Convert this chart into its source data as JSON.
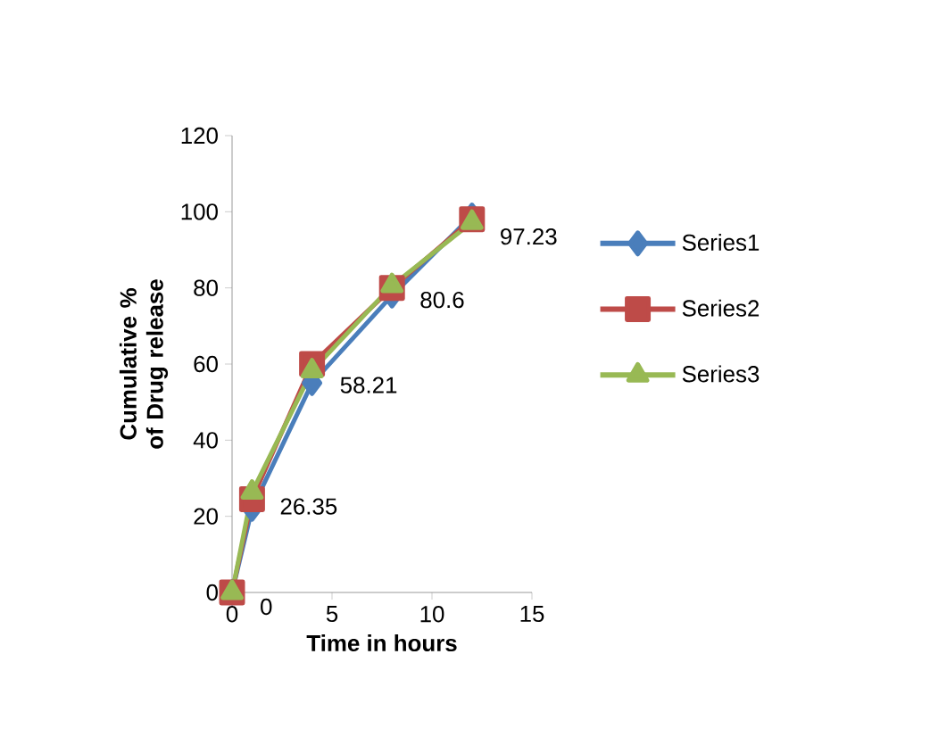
{
  "chart_data": {
    "type": "line",
    "xlabel": "Time in hours",
    "ylabel": "Cumulative % of Drug release",
    "x": [
      0,
      1,
      4,
      8,
      12
    ],
    "series": [
      {
        "name": "Series1",
        "color": "#4a7ebb",
        "marker": "diamond",
        "values": [
          0,
          22,
          55,
          78,
          99
        ]
      },
      {
        "name": "Series2",
        "color": "#be4b48",
        "marker": "square",
        "values": [
          0,
          24.5,
          60,
          80,
          98
        ]
      },
      {
        "name": "Series3",
        "color": "#98b954",
        "marker": "triangle",
        "values": [
          0,
          26.35,
          58.21,
          80.6,
          97.23
        ],
        "value_labels": [
          "0",
          "26.35",
          "58.21",
          "80.6",
          "97.23"
        ]
      }
    ],
    "xlim": [
      0,
      15
    ],
    "xticks": [
      0,
      5,
      10,
      15
    ],
    "ylim": [
      0,
      120
    ],
    "yticks": [
      0,
      20,
      40,
      60,
      80,
      100,
      120
    ],
    "grid": false,
    "legend": "right",
    "line_style": "solid"
  }
}
